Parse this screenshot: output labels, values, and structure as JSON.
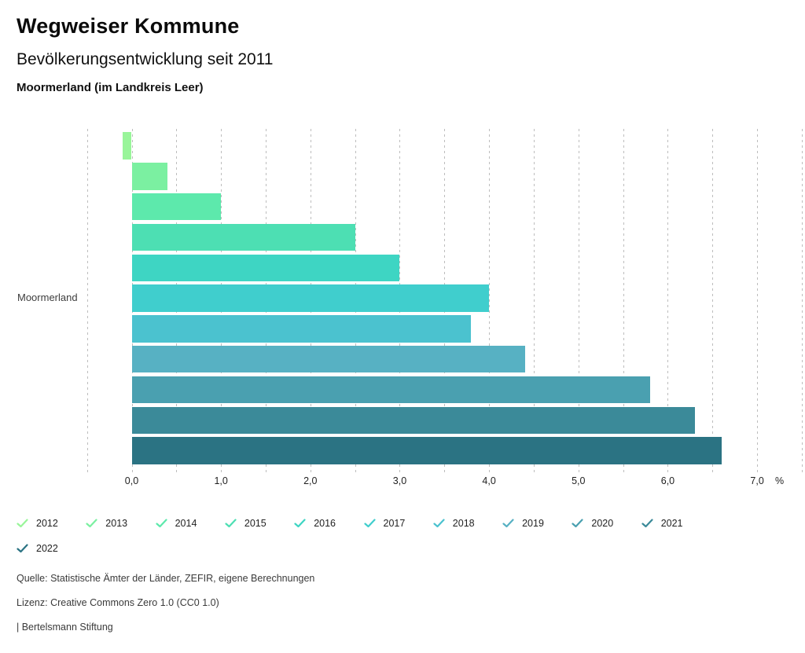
{
  "header": {
    "title": "Wegweiser Kommune",
    "subtitle": "Bevölkerungsentwicklung seit 2011",
    "region_line": "Moormerland (im Landkreis Leer)"
  },
  "chart_data": {
    "type": "bar",
    "orientation": "horizontal",
    "title": "Bevölkerungsentwicklung seit 2011",
    "category_label": "Moormerland",
    "unit": "%",
    "xlim": [
      -0.5,
      7.5
    ],
    "grid_step": 0.5,
    "grid_style": "dashed",
    "x_tick_values": [
      0,
      1,
      2,
      3,
      4,
      5,
      6,
      7
    ],
    "x_tick_labels": [
      "0,0",
      "1,0",
      "2,0",
      "3,0",
      "4,0",
      "5,0",
      "6,0",
      "7,0"
    ],
    "legend_position": "bottom",
    "series": [
      {
        "name": "2012",
        "value": -0.1,
        "color": "#99f59a"
      },
      {
        "name": "2013",
        "value": 0.4,
        "color": "#7bf0a1"
      },
      {
        "name": "2014",
        "value": 1.0,
        "color": "#5de9ac"
      },
      {
        "name": "2015",
        "value": 2.5,
        "color": "#4ddfb3"
      },
      {
        "name": "2016",
        "value": 3.0,
        "color": "#3ed5c3"
      },
      {
        "name": "2017",
        "value": 4.0,
        "color": "#40cecd"
      },
      {
        "name": "2018",
        "value": 3.8,
        "color": "#4bc2cf"
      },
      {
        "name": "2019",
        "value": 4.4,
        "color": "#57b1c3"
      },
      {
        "name": "2020",
        "value": 5.8,
        "color": "#4aa0b0"
      },
      {
        "name": "2021",
        "value": 6.3,
        "color": "#3b8a99"
      },
      {
        "name": "2022",
        "value": 6.6,
        "color": "#2b7383"
      }
    ]
  },
  "footer": {
    "source": "Quelle: Statistische Ämter der Länder, ZEFIR, eigene Berechnungen",
    "license": "Lizenz: Creative Commons Zero 1.0 (CC0 1.0)",
    "attribution": "| Bertelsmann Stiftung"
  }
}
